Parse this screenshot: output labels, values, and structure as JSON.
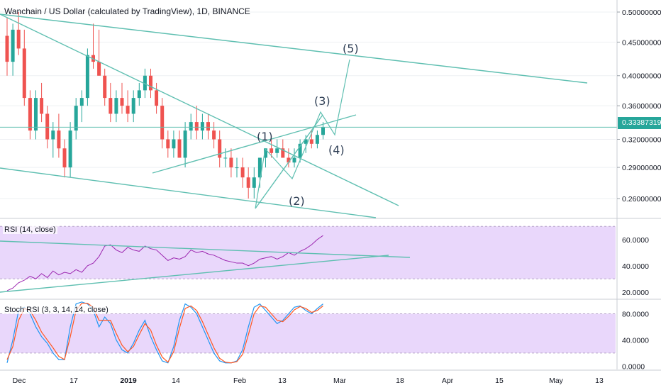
{
  "header": {
    "title": "Wanchain / US Dollar (calculated by TradingView), 1D, BINANCE"
  },
  "colors": {
    "up": "#26a69a",
    "down": "#ef5350",
    "trendline": "#5fbfb1",
    "rsi_band": "#e9d7fb",
    "rsi_line": "#9c27b0",
    "stoch_k": "#2196f3",
    "stoch_d": "#ff5722",
    "annotation": "#2f3f55"
  },
  "chart_data": [
    {
      "id": "price",
      "type": "candlestick",
      "y_scale": "log",
      "ylim": [
        0.25,
        0.52
      ],
      "y_ticks": [
        "0.26000000",
        "0.29000000",
        "0.32000000",
        "0.36000000",
        "0.40000000",
        "0.45000000",
        "0.50000000"
      ],
      "last_price": "0.33387319",
      "x_ticks": [
        "Dec",
        "17",
        "2019",
        "14",
        "Feb",
        "13",
        "Mar",
        "18",
        "Apr",
        "15",
        "May",
        "13"
      ],
      "candles": [
        [
          0.46,
          0.49,
          0.4,
          0.42
        ],
        [
          0.42,
          0.48,
          0.4,
          0.47
        ],
        [
          0.47,
          0.5,
          0.43,
          0.44
        ],
        [
          0.44,
          0.47,
          0.36,
          0.37
        ],
        [
          0.37,
          0.38,
          0.32,
          0.33
        ],
        [
          0.33,
          0.38,
          0.32,
          0.37
        ],
        [
          0.37,
          0.39,
          0.34,
          0.35
        ],
        [
          0.35,
          0.36,
          0.31,
          0.32
        ],
        [
          0.32,
          0.34,
          0.3,
          0.33
        ],
        [
          0.33,
          0.35,
          0.3,
          0.31
        ],
        [
          0.31,
          0.32,
          0.28,
          0.29
        ],
        [
          0.29,
          0.34,
          0.28,
          0.33
        ],
        [
          0.33,
          0.37,
          0.32,
          0.36
        ],
        [
          0.36,
          0.38,
          0.34,
          0.37
        ],
        [
          0.37,
          0.44,
          0.36,
          0.43
        ],
        [
          0.43,
          0.48,
          0.41,
          0.42
        ],
        [
          0.42,
          0.47,
          0.4,
          0.4
        ],
        [
          0.4,
          0.41,
          0.36,
          0.37
        ],
        [
          0.37,
          0.39,
          0.34,
          0.35
        ],
        [
          0.35,
          0.38,
          0.34,
          0.37
        ],
        [
          0.37,
          0.39,
          0.35,
          0.36
        ],
        [
          0.36,
          0.38,
          0.34,
          0.35
        ],
        [
          0.35,
          0.38,
          0.34,
          0.37
        ],
        [
          0.37,
          0.39,
          0.36,
          0.38
        ],
        [
          0.38,
          0.41,
          0.37,
          0.4
        ],
        [
          0.4,
          0.41,
          0.37,
          0.38
        ],
        [
          0.38,
          0.39,
          0.35,
          0.36
        ],
        [
          0.36,
          0.37,
          0.31,
          0.32
        ],
        [
          0.32,
          0.33,
          0.3,
          0.31
        ],
        [
          0.31,
          0.33,
          0.3,
          0.32
        ],
        [
          0.32,
          0.33,
          0.3,
          0.3
        ],
        [
          0.3,
          0.34,
          0.29,
          0.33
        ],
        [
          0.33,
          0.35,
          0.32,
          0.34
        ],
        [
          0.34,
          0.36,
          0.32,
          0.33
        ],
        [
          0.33,
          0.35,
          0.32,
          0.34
        ],
        [
          0.34,
          0.35,
          0.32,
          0.33
        ],
        [
          0.33,
          0.34,
          0.31,
          0.32
        ],
        [
          0.32,
          0.33,
          0.29,
          0.3
        ],
        [
          0.3,
          0.31,
          0.29,
          0.3
        ],
        [
          0.3,
          0.31,
          0.28,
          0.29
        ],
        [
          0.29,
          0.3,
          0.28,
          0.29
        ],
        [
          0.29,
          0.3,
          0.27,
          0.28
        ],
        [
          0.28,
          0.29,
          0.26,
          0.27
        ],
        [
          0.27,
          0.29,
          0.26,
          0.28
        ],
        [
          0.28,
          0.3,
          0.27,
          0.3
        ],
        [
          0.3,
          0.31,
          0.29,
          0.31
        ],
        [
          0.31,
          0.32,
          0.3,
          0.305
        ],
        [
          0.305,
          0.32,
          0.3,
          0.31
        ],
        [
          0.31,
          0.32,
          0.3,
          0.3
        ],
        [
          0.3,
          0.31,
          0.29,
          0.295
        ],
        [
          0.295,
          0.31,
          0.29,
          0.3
        ],
        [
          0.3,
          0.32,
          0.295,
          0.315
        ],
        [
          0.315,
          0.325,
          0.305,
          0.32
        ],
        [
          0.32,
          0.33,
          0.31,
          0.315
        ],
        [
          0.315,
          0.33,
          0.31,
          0.325
        ],
        [
          0.325,
          0.34,
          0.32,
          0.334
        ]
      ],
      "annotations": [
        "(1)",
        "(2)",
        "(3)",
        "(4)",
        "(5)"
      ]
    },
    {
      "id": "rsi",
      "type": "line",
      "label": "RSI (14, close)",
      "ylim": [
        15,
        75
      ],
      "y_ticks": [
        "20.0000",
        "40.0000",
        "60.0000"
      ],
      "band": [
        30,
        70
      ],
      "values": [
        21,
        23,
        27,
        29,
        32,
        30,
        34,
        31,
        36,
        33,
        35,
        34,
        37,
        35,
        40,
        42,
        47,
        55,
        56,
        52,
        50,
        54,
        52,
        51,
        55,
        53,
        52,
        48,
        44,
        46,
        45,
        47,
        52,
        50,
        51,
        49,
        48,
        46,
        44,
        43,
        42,
        42,
        40,
        42,
        45,
        46,
        47,
        45,
        47,
        50,
        48,
        51,
        53,
        56,
        60,
        63
      ]
    },
    {
      "id": "stoch_rsi",
      "type": "line",
      "label": "Stoch RSI (3, 3, 14, 14, close)",
      "ylim": [
        -5,
        100
      ],
      "y_ticks": [
        "0.0000",
        "40.0000",
        "80.0000"
      ],
      "band": [
        20,
        80
      ],
      "series": [
        {
          "values": [
            5,
            40,
            85,
            90,
            80,
            60,
            45,
            35,
            20,
            10,
            10,
            60,
            95,
            98,
            95,
            85,
            60,
            75,
            65,
            40,
            25,
            20,
            35,
            55,
            70,
            45,
            25,
            8,
            5,
            30,
            70,
            95,
            90,
            80,
            60,
            40,
            20,
            8,
            5,
            5,
            8,
            25,
            60,
            90,
            95,
            85,
            75,
            65,
            70,
            80,
            90,
            92,
            85,
            80,
            88,
            95
          ]
        },
        {
          "values": [
            10,
            30,
            70,
            88,
            85,
            70,
            52,
            40,
            28,
            15,
            10,
            45,
            85,
            96,
            96,
            90,
            70,
            70,
            70,
            50,
            32,
            22,
            30,
            48,
            65,
            55,
            32,
            14,
            6,
            22,
            58,
            88,
            92,
            85,
            68,
            48,
            28,
            12,
            6,
            5,
            7,
            18,
            48,
            80,
            92,
            90,
            80,
            70,
            68,
            76,
            86,
            91,
            88,
            82,
            85,
            92
          ]
        }
      ]
    }
  ]
}
